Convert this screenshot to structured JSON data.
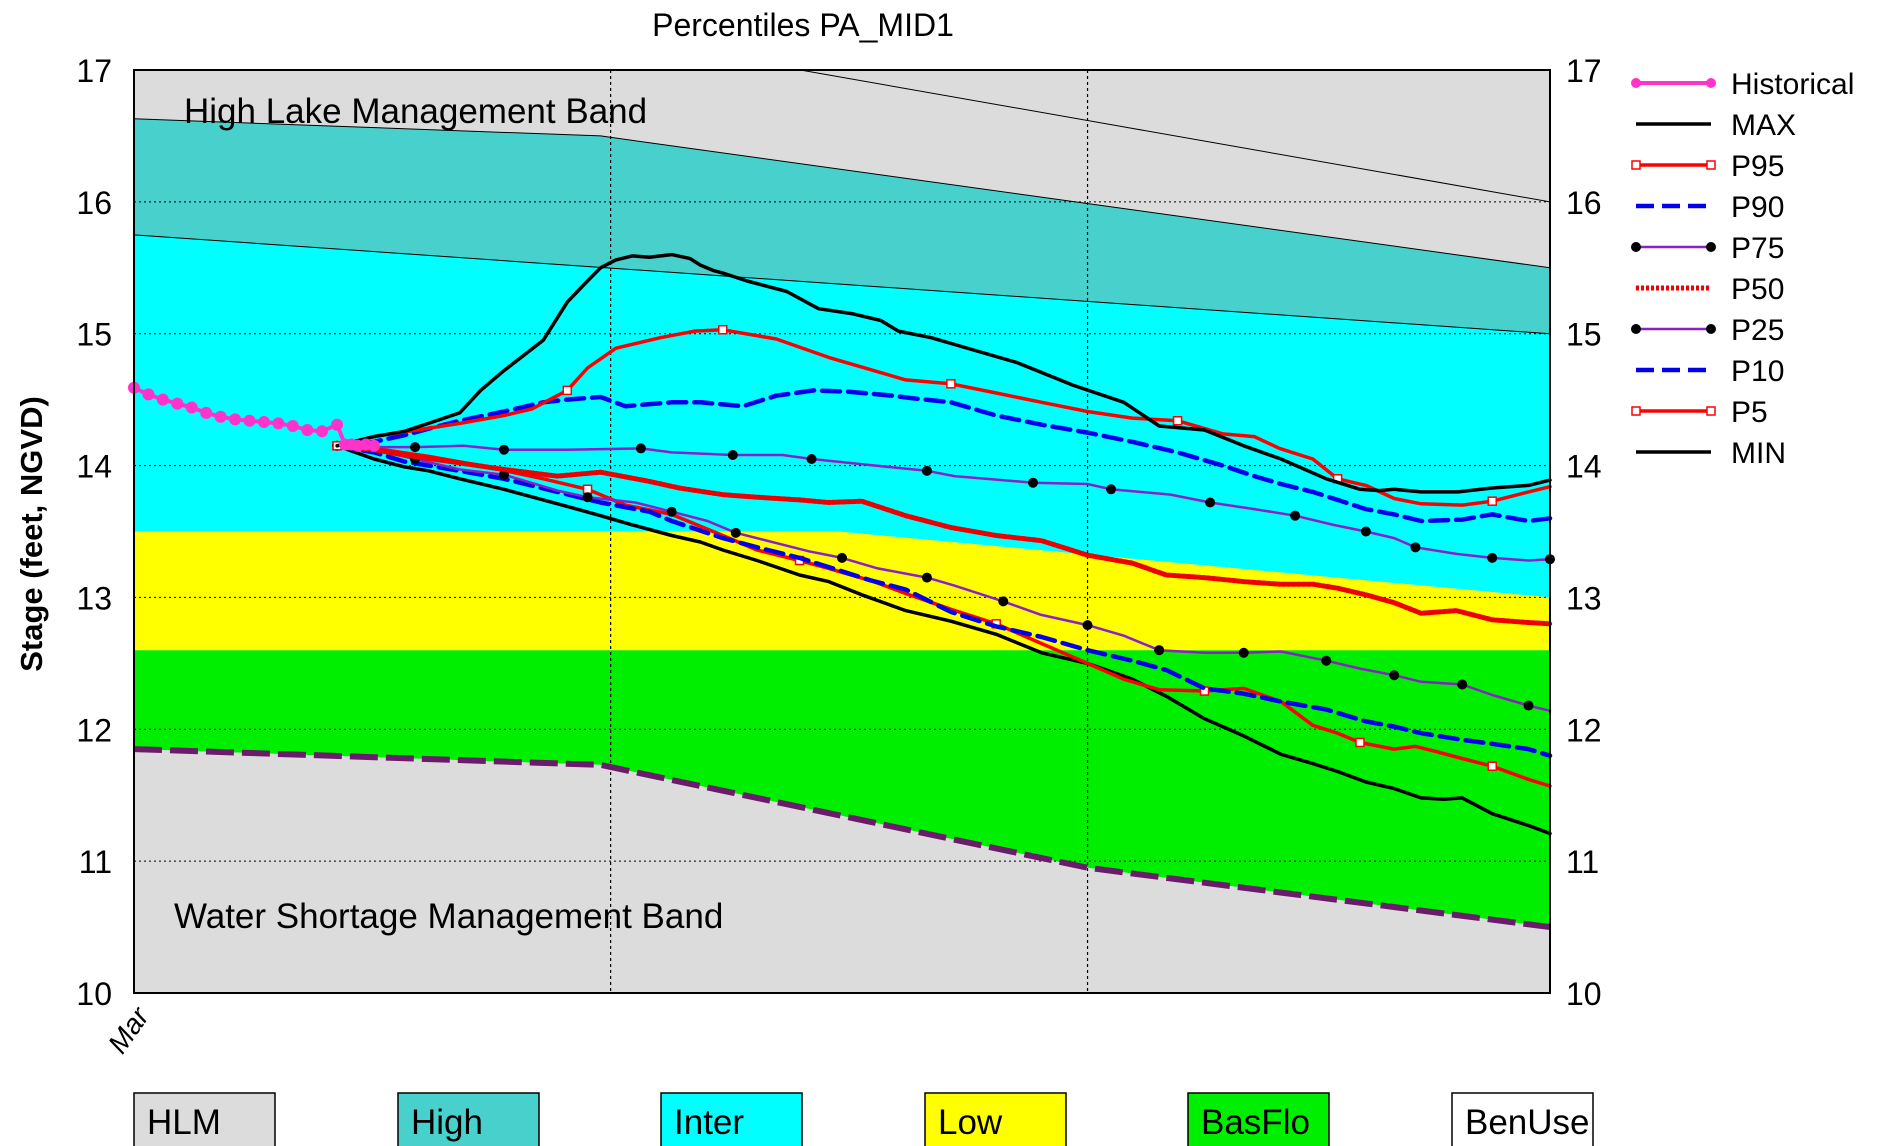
{
  "chart_data": {
    "type": "line",
    "title": "Percentiles PA_MID1",
    "ylabel": "Stage (feet, NGVD)",
    "ylim": [
      10,
      17
    ],
    "y_ticks": [
      10,
      11,
      12,
      13,
      14,
      15,
      16,
      17
    ],
    "x_range": [
      0,
      1
    ],
    "x_tick_label": "Mar",
    "vertical_gridlines_x": [
      0.3366,
      0.6734
    ],
    "grid": true,
    "legend_position": "right",
    "band_labels": {
      "high": "High Lake Management Band",
      "low": "Water Shortage Management Band"
    },
    "band_boundaries": {
      "hlm_top": [
        [
          0,
          17
        ],
        [
          0.4706,
          17
        ],
        [
          1,
          16.0
        ]
      ],
      "high_top": [
        [
          0,
          16.63
        ],
        [
          0.3295,
          16.5
        ],
        [
          1,
          15.5
        ]
      ],
      "inter_top": [
        [
          0,
          15.75
        ],
        [
          1,
          15.0
        ]
      ],
      "low_top": [
        [
          0,
          13.5
        ],
        [
          0.4966,
          13.5
        ],
        [
          1,
          13.0
        ]
      ],
      "basflo_top": [
        [
          0,
          12.6
        ],
        [
          1,
          12.6
        ]
      ],
      "benuse_top": [
        [
          0,
          11.85
        ],
        [
          0.3295,
          11.73
        ],
        [
          0.6734,
          10.95
        ],
        [
          1,
          10.5
        ]
      ]
    },
    "colors": {
      "hlm": "#dcdcdc",
      "high": "#48d1cc",
      "inter": "#00ffff",
      "low": "#ffff00",
      "basflo": "#00ee00",
      "benuse": "#ffffff",
      "wsm_line": "#6a1b6a",
      "historical": "#ff33cc",
      "black": "#000000",
      "red": "#ff0000",
      "blue": "#0000ee",
      "purple": "#8b1fc9",
      "darkred": "#ee0000"
    },
    "series": [
      {
        "name": "Historical",
        "style": "historical",
        "x": [
          0,
          0.0102,
          0.0204,
          0.0306,
          0.0408,
          0.051,
          0.0612,
          0.0714,
          0.0816,
          0.0918,
          0.102,
          0.1122,
          0.1224,
          0.1328,
          0.1434,
          0.149,
          0.1535,
          0.1581,
          0.1638,
          0.1695
        ],
        "y": [
          14.59,
          14.54,
          14.5,
          14.47,
          14.44,
          14.4,
          14.37,
          14.35,
          14.34,
          14.33,
          14.32,
          14.3,
          14.27,
          14.26,
          14.31,
          14.16,
          14.16,
          14.15,
          14.16,
          14.15
        ]
      },
      {
        "name": "MAX",
        "style": "black",
        "x": [
          0.1434,
          0.1695,
          0.191,
          0.208,
          0.2301,
          0.2448,
          0.2613,
          0.289,
          0.306,
          0.3203,
          0.3295,
          0.3403,
          0.352,
          0.364,
          0.3797,
          0.3927,
          0.4,
          0.4089,
          0.4158,
          0.433,
          0.461,
          0.4834,
          0.508,
          0.5274,
          0.5398,
          0.563,
          0.5917,
          0.6239,
          0.663,
          0.699,
          0.724,
          0.756,
          0.7837,
          0.81,
          0.842,
          0.8658,
          0.8795,
          0.89,
          0.909,
          0.935,
          0.9592,
          0.9848,
          1.0
        ],
        "y": [
          14.15,
          14.22,
          14.26,
          14.32,
          14.4,
          14.57,
          14.72,
          14.95,
          15.24,
          15.4,
          15.5,
          15.56,
          15.59,
          15.58,
          15.6,
          15.57,
          15.52,
          15.48,
          15.46,
          15.4,
          15.32,
          15.19,
          15.15,
          15.1,
          15.02,
          14.97,
          14.88,
          14.78,
          14.61,
          14.48,
          14.3,
          14.27,
          14.15,
          14.05,
          13.9,
          13.82,
          13.81,
          13.82,
          13.8,
          13.8,
          13.83,
          13.85,
          13.89
        ]
      },
      {
        "name": "P95",
        "style": "red_sq",
        "x": [
          0.1434,
          0.1695,
          0.2301,
          0.2613,
          0.281,
          0.306,
          0.3203,
          0.3403,
          0.3717,
          0.3961,
          0.4158,
          0.4536,
          0.4906,
          0.5224,
          0.545,
          0.5769,
          0.6089,
          0.641,
          0.6734,
          0.705,
          0.737,
          0.769,
          0.7911,
          0.809,
          0.8325,
          0.85,
          0.87,
          0.89,
          0.909,
          0.938,
          0.9592,
          0.9848,
          1.0
        ],
        "y": [
          14.15,
          14.22,
          14.32,
          14.38,
          14.43,
          14.57,
          14.74,
          14.89,
          14.97,
          15.02,
          15.03,
          14.96,
          14.82,
          14.72,
          14.65,
          14.62,
          14.55,
          14.48,
          14.41,
          14.36,
          14.34,
          14.24,
          14.22,
          14.13,
          14.05,
          13.9,
          13.85,
          13.75,
          13.71,
          13.7,
          13.73,
          13.8,
          13.84
        ]
      },
      {
        "name": "P90",
        "style": "blue_dash",
        "x": [
          0.1434,
          0.1695,
          0.191,
          0.208,
          0.2301,
          0.2613,
          0.289,
          0.306,
          0.3295,
          0.347,
          0.3797,
          0.4,
          0.43,
          0.4536,
          0.48,
          0.505,
          0.5359,
          0.55,
          0.5769,
          0.6089,
          0.641,
          0.6734,
          0.705,
          0.737,
          0.769,
          0.7911,
          0.81,
          0.8325,
          0.85,
          0.87,
          0.89,
          0.909,
          0.938,
          0.9592,
          0.9848,
          1.0
        ],
        "y": [
          14.15,
          14.18,
          14.23,
          14.28,
          14.34,
          14.41,
          14.48,
          14.5,
          14.52,
          14.45,
          14.48,
          14.48,
          14.45,
          14.53,
          14.57,
          14.56,
          14.53,
          14.51,
          14.48,
          14.38,
          14.31,
          14.25,
          14.18,
          14.1,
          14.0,
          13.92,
          13.86,
          13.8,
          13.74,
          13.67,
          13.63,
          13.58,
          13.59,
          13.63,
          13.58,
          13.6
        ]
      },
      {
        "name": "P75",
        "style": "purple_dot",
        "x": [
          0.1434,
          0.1695,
          0.1985,
          0.233,
          0.2613,
          0.306,
          0.358,
          0.3797,
          0.4229,
          0.458,
          0.4785,
          0.5237,
          0.56,
          0.5793,
          0.6349,
          0.6734,
          0.69,
          0.732,
          0.76,
          0.7911,
          0.82,
          0.847,
          0.87,
          0.89,
          0.905,
          0.9338,
          0.9592,
          0.9848,
          1.0
        ],
        "y": [
          14.15,
          14.14,
          14.14,
          14.15,
          14.12,
          14.12,
          14.13,
          14.1,
          14.08,
          14.08,
          14.05,
          14.0,
          13.96,
          13.92,
          13.87,
          13.86,
          13.82,
          13.78,
          13.72,
          13.67,
          13.62,
          13.55,
          13.5,
          13.45,
          13.38,
          13.33,
          13.3,
          13.28,
          13.29
        ]
      },
      {
        "name": "P50",
        "style": "red_dotted",
        "x": [
          0.1434,
          0.1695,
          0.191,
          0.2301,
          0.2613,
          0.299,
          0.3295,
          0.364,
          0.385,
          0.4158,
          0.44,
          0.47,
          0.4906,
          0.514,
          0.545,
          0.5769,
          0.6089,
          0.641,
          0.6734,
          0.705,
          0.729,
          0.756,
          0.7837,
          0.809,
          0.8325,
          0.85,
          0.87,
          0.89,
          0.909,
          0.9338,
          0.9592,
          0.9848,
          1.0
        ],
        "y": [
          14.15,
          14.12,
          14.08,
          14.02,
          13.97,
          13.92,
          13.95,
          13.88,
          13.83,
          13.78,
          13.76,
          13.74,
          13.72,
          13.73,
          13.62,
          13.53,
          13.47,
          13.43,
          13.32,
          13.26,
          13.17,
          13.15,
          13.12,
          13.1,
          13.1,
          13.07,
          13.02,
          12.96,
          12.88,
          12.9,
          12.83,
          12.81,
          12.8
        ]
      },
      {
        "name": "P25",
        "style": "purple_dot",
        "x": [
          0.1434,
          0.1695,
          0.1985,
          0.2301,
          0.2613,
          0.299,
          0.3203,
          0.354,
          0.3797,
          0.405,
          0.425,
          0.4766,
          0.5,
          0.5252,
          0.56,
          0.5793,
          0.6139,
          0.64,
          0.6734,
          0.699,
          0.724,
          0.756,
          0.7837,
          0.81,
          0.842,
          0.8658,
          0.89,
          0.909,
          0.938,
          0.9592,
          0.9848,
          1.0
        ],
        "y": [
          14.15,
          14.12,
          14.05,
          13.97,
          13.93,
          13.81,
          13.76,
          13.72,
          13.65,
          13.58,
          13.49,
          13.35,
          13.3,
          13.22,
          13.15,
          13.09,
          12.97,
          12.87,
          12.79,
          12.71,
          12.6,
          12.58,
          12.58,
          12.59,
          12.52,
          12.46,
          12.41,
          12.36,
          12.34,
          12.26,
          12.18,
          12.14
        ]
      },
      {
        "name": "P10",
        "style": "blue_dash",
        "x": [
          0.1434,
          0.1695,
          0.191,
          0.2301,
          0.2613,
          0.299,
          0.3295,
          0.364,
          0.3797,
          0.4158,
          0.44,
          0.47,
          0.4906,
          0.52,
          0.545,
          0.5769,
          0.6089,
          0.641,
          0.6734,
          0.705,
          0.729,
          0.756,
          0.7837,
          0.81,
          0.842,
          0.87,
          0.89,
          0.909,
          0.938,
          0.9592,
          0.9848,
          1.0
        ],
        "y": [
          14.15,
          14.1,
          14.03,
          13.96,
          13.9,
          13.8,
          13.72,
          13.65,
          13.58,
          13.45,
          13.38,
          13.3,
          13.23,
          13.13,
          13.06,
          12.89,
          12.78,
          12.7,
          12.6,
          12.52,
          12.45,
          12.31,
          12.27,
          12.21,
          12.15,
          12.06,
          12.02,
          11.97,
          11.92,
          11.89,
          11.85,
          11.8
        ]
      },
      {
        "name": "P5",
        "style": "red_sq",
        "x": [
          0.1434,
          0.1695,
          0.208,
          0.2448,
          0.289,
          0.3203,
          0.347,
          0.3797,
          0.4158,
          0.44,
          0.47,
          0.4906,
          0.5224,
          0.545,
          0.5769,
          0.6089,
          0.641,
          0.6734,
          0.699,
          0.724,
          0.756,
          0.7837,
          0.81,
          0.8325,
          0.85,
          0.8658,
          0.89,
          0.905,
          0.92,
          0.9338,
          0.9592,
          0.9848,
          1.0
        ],
        "y": [
          14.15,
          14.13,
          14.07,
          14.0,
          13.9,
          13.82,
          13.7,
          13.63,
          13.47,
          13.36,
          13.28,
          13.22,
          13.12,
          13.03,
          12.91,
          12.8,
          12.65,
          12.5,
          12.38,
          12.3,
          12.29,
          12.31,
          12.21,
          12.03,
          11.97,
          11.9,
          11.85,
          11.87,
          11.83,
          11.79,
          11.72,
          11.62,
          11.57
        ]
      },
      {
        "name": "MIN",
        "style": "black",
        "x": [
          0.1434,
          0.1695,
          0.191,
          0.208,
          0.2301,
          0.2613,
          0.289,
          0.306,
          0.3295,
          0.352,
          0.3797,
          0.4,
          0.4158,
          0.44,
          0.47,
          0.4906,
          0.514,
          0.545,
          0.5769,
          0.6089,
          0.641,
          0.6734,
          0.705,
          0.729,
          0.756,
          0.7837,
          0.81,
          0.8325,
          0.85,
          0.87,
          0.89,
          0.909,
          0.925,
          0.938,
          0.9592,
          0.9848,
          1.0
        ],
        "y": [
          14.15,
          14.05,
          13.99,
          13.96,
          13.9,
          13.82,
          13.74,
          13.69,
          13.62,
          13.55,
          13.47,
          13.42,
          13.36,
          13.28,
          13.17,
          13.12,
          13.02,
          12.9,
          12.82,
          12.72,
          12.58,
          12.5,
          12.38,
          12.25,
          12.08,
          11.95,
          11.81,
          11.74,
          11.68,
          11.6,
          11.55,
          11.48,
          11.47,
          11.48,
          11.36,
          11.27,
          11.21
        ]
      }
    ],
    "legend": [
      {
        "label": "Historical",
        "style": "historical"
      },
      {
        "label": "MAX",
        "style": "black"
      },
      {
        "label": "P95",
        "style": "red_sq"
      },
      {
        "label": "P90",
        "style": "blue_dash"
      },
      {
        "label": "P75",
        "style": "purple_dot"
      },
      {
        "label": "P50",
        "style": "red_dotted"
      },
      {
        "label": "P25",
        "style": "purple_dot"
      },
      {
        "label": "P10",
        "style": "blue_dash"
      },
      {
        "label": "P5",
        "style": "red_sq"
      },
      {
        "label": "MIN",
        "style": "black"
      }
    ],
    "band_key": [
      {
        "label": "HLM",
        "color": "#dcdcdc"
      },
      {
        "label": "High",
        "color": "#48d1cc"
      },
      {
        "label": "Inter",
        "color": "#00ffff"
      },
      {
        "label": "Low",
        "color": "#ffff00"
      },
      {
        "label": "BasFlo",
        "color": "#00ee00"
      },
      {
        "label": "BenUse",
        "color": "#ffffff"
      }
    ]
  }
}
